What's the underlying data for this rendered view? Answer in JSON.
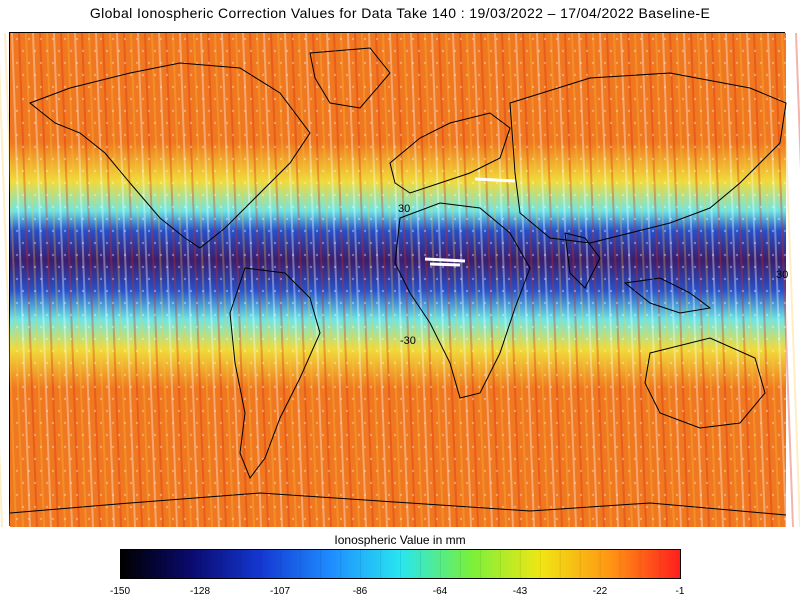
{
  "title": "Global Ionospheric Correction Values for Data Take 140 : 19/03/2022 – 17/04/2022 Baseline-E",
  "colorbar": {
    "title": "Ionospheric Value in mm",
    "ticks": [
      "-150",
      "-128",
      "-107",
      "-86",
      "-64",
      "-43",
      "-22",
      "-1"
    ],
    "min": -150,
    "max": -1,
    "colors": [
      "#000000",
      "#0a0a6e",
      "#1438d2",
      "#1e8cff",
      "#28e6f0",
      "#78f03c",
      "#f0e614",
      "#ff9614",
      "#ff1e1e"
    ]
  },
  "map": {
    "lat_labels": [
      "30",
      "-30",
      "30"
    ],
    "band_colors": {
      "high": "#f07820",
      "mid": "#f0dc3c",
      "cyan": "#6ee6e6",
      "eq_blue": "#2850c8",
      "eq_dark": "#3a1e6e"
    }
  }
}
